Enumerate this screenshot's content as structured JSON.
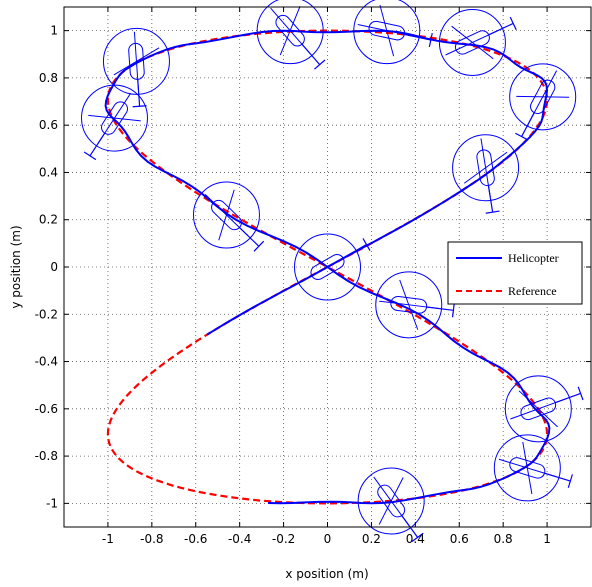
{
  "chart_data": {
    "type": "line",
    "title": "",
    "xlabel": "x position (m)",
    "ylabel": "y position (m)",
    "xlim": [
      -1.2,
      1.2
    ],
    "ylim": [
      -1.1,
      1.1
    ],
    "grid": true,
    "legend_placement": "middle-right",
    "x_ticks": [
      -1,
      -0.8,
      -0.6,
      -0.4,
      -0.2,
      0,
      0.2,
      0.4,
      0.6,
      0.8,
      1
    ],
    "x_tick_labels": [
      "-1",
      "-0.8",
      "-0.6",
      "-0.4",
      "-0.2",
      "0",
      "0.2",
      "0.4",
      "0.6",
      "0.8",
      "1"
    ],
    "y_ticks": [
      -1,
      -0.8,
      -0.6,
      -0.4,
      -0.2,
      0,
      0.2,
      0.4,
      0.6,
      0.8,
      1
    ],
    "y_tick_labels": [
      "-1",
      "-0.8",
      "-0.6",
      "-0.4",
      "-0.2",
      "0",
      "0.2",
      "0.4",
      "0.6",
      "0.8",
      "1"
    ],
    "series": [
      {
        "name": "Helicopter",
        "color": "#0000ff",
        "style": "solid",
        "x": [
          0.01,
          0.2,
          0.45,
          0.65,
          0.85,
          0.98,
          1.0,
          0.95,
          0.8,
          0.6,
          0.35,
          0.12,
          -0.1,
          -0.4,
          -0.7,
          -0.9,
          -0.98,
          -0.97,
          -0.85,
          -0.6,
          -0.3,
          0.0,
          0.3,
          0.6,
          0.85,
          0.99,
          1.0,
          0.92,
          0.78,
          0.6,
          0.45,
          0.3,
          0.15,
          0.0,
          -0.2,
          -0.4,
          -0.57
        ],
        "y": [
          -0.03,
          -0.13,
          -0.25,
          -0.43,
          -0.6,
          -0.75,
          -0.86,
          -0.88,
          -0.93,
          -0.96,
          -0.99,
          -0.99,
          -1.01,
          -1.01,
          -1.0,
          -0.98,
          -0.95,
          null,
          null,
          null,
          null,
          null,
          null,
          null,
          null,
          null,
          null,
          null,
          null,
          null,
          null,
          null,
          null,
          null,
          null,
          null,
          null
        ]
      },
      {
        "name": "Reference",
        "color": "#ff0000",
        "style": "dashed",
        "x": [],
        "y": []
      }
    ],
    "helicopter_positions": [
      {
        "x": 0.0,
        "y": 0.0
      },
      {
        "x": 0.37,
        "y": -0.16
      },
      {
        "x": -0.46,
        "y": 0.22
      },
      {
        "x": 0.72,
        "y": 0.42
      },
      {
        "x": 0.98,
        "y": 0.72
      },
      {
        "x": 0.66,
        "y": 0.95
      },
      {
        "x": 0.27,
        "y": 1.0
      },
      {
        "x": -0.17,
        "y": 1.0
      },
      {
        "x": -0.87,
        "y": 0.87
      },
      {
        "x": -0.97,
        "y": 0.63
      },
      {
        "x": 0.96,
        "y": -0.6
      },
      {
        "x": 0.91,
        "y": -0.85
      },
      {
        "x": 0.29,
        "y": -0.99
      }
    ]
  },
  "legend": {
    "entries": [
      {
        "label": "Helicopter",
        "color": "#0000ff",
        "dash": ""
      },
      {
        "label": "Reference",
        "color": "#ff0000",
        "dash": "6,4"
      }
    ]
  }
}
